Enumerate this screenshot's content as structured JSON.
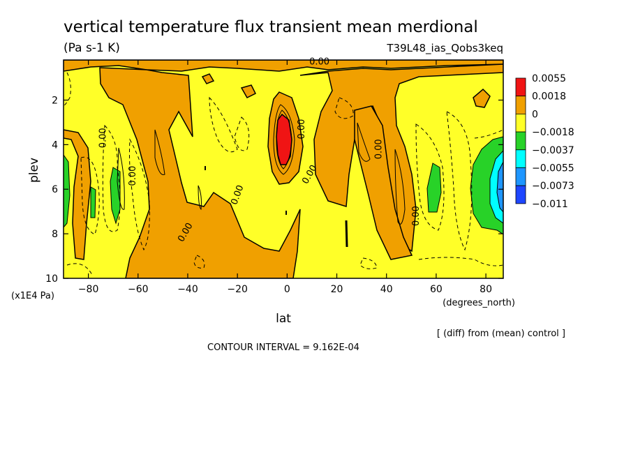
{
  "chart_data": {
    "type": "heatmap",
    "title": "vertical temperature flux transient mean merdional",
    "subtitle": "(Pa s-1 K)",
    "run_label": "T39L48_ias_Qobs3keq",
    "xlabel": "lat",
    "x_units": "(degrees_north)",
    "ylabel": "plev",
    "y_units": "(x1E4 Pa)",
    "xlim": [
      -90,
      87
    ],
    "ylim": [
      10,
      0.2
    ],
    "x_ticks": [
      -80,
      -60,
      -40,
      -20,
      0,
      20,
      40,
      60,
      80
    ],
    "y_ticks": [
      2,
      4,
      6,
      8,
      10
    ],
    "contour_interval_text": "CONTOUR INTERVAL = 9.162E-04",
    "diff_note": "[ (diff) from (mean) control ]",
    "legend": {
      "placement": "right",
      "labels": [
        "0.0055",
        "0.0018",
        "0",
        "−0.0018",
        "−0.0037",
        "−0.0055",
        "−0.0073",
        "−0.011"
      ],
      "colors": [
        "#f01414",
        "#f0a000",
        "#ffff28",
        "#28d228",
        "#00ffff",
        "#1e96ff",
        "#1e46ff"
      ]
    },
    "contour_labels": [
      {
        "text": "0.00",
        "lat": 13,
        "plev": 0.4,
        "rotate": 0
      },
      {
        "text": "0.00",
        "lat": -73,
        "plev": 3.7,
        "rotate": -90
      },
      {
        "text": "0.00",
        "lat": 7,
        "plev": 3.3,
        "rotate": -90
      },
      {
        "text": "0.00",
        "lat": 38,
        "plev": 4.2,
        "rotate": -90
      },
      {
        "text": "0.00",
        "lat": -61,
        "plev": 5.4,
        "rotate": -90
      },
      {
        "text": "0.00",
        "lat": 10,
        "plev": 5.4,
        "rotate": -60
      },
      {
        "text": "0.00",
        "lat": -19,
        "plev": 6.3,
        "rotate": -70
      },
      {
        "text": "0.00",
        "lat": -40,
        "plev": 8.0,
        "rotate": -60
      },
      {
        "text": "0.00",
        "lat": 53,
        "plev": 7.2,
        "rotate": -90
      }
    ]
  }
}
